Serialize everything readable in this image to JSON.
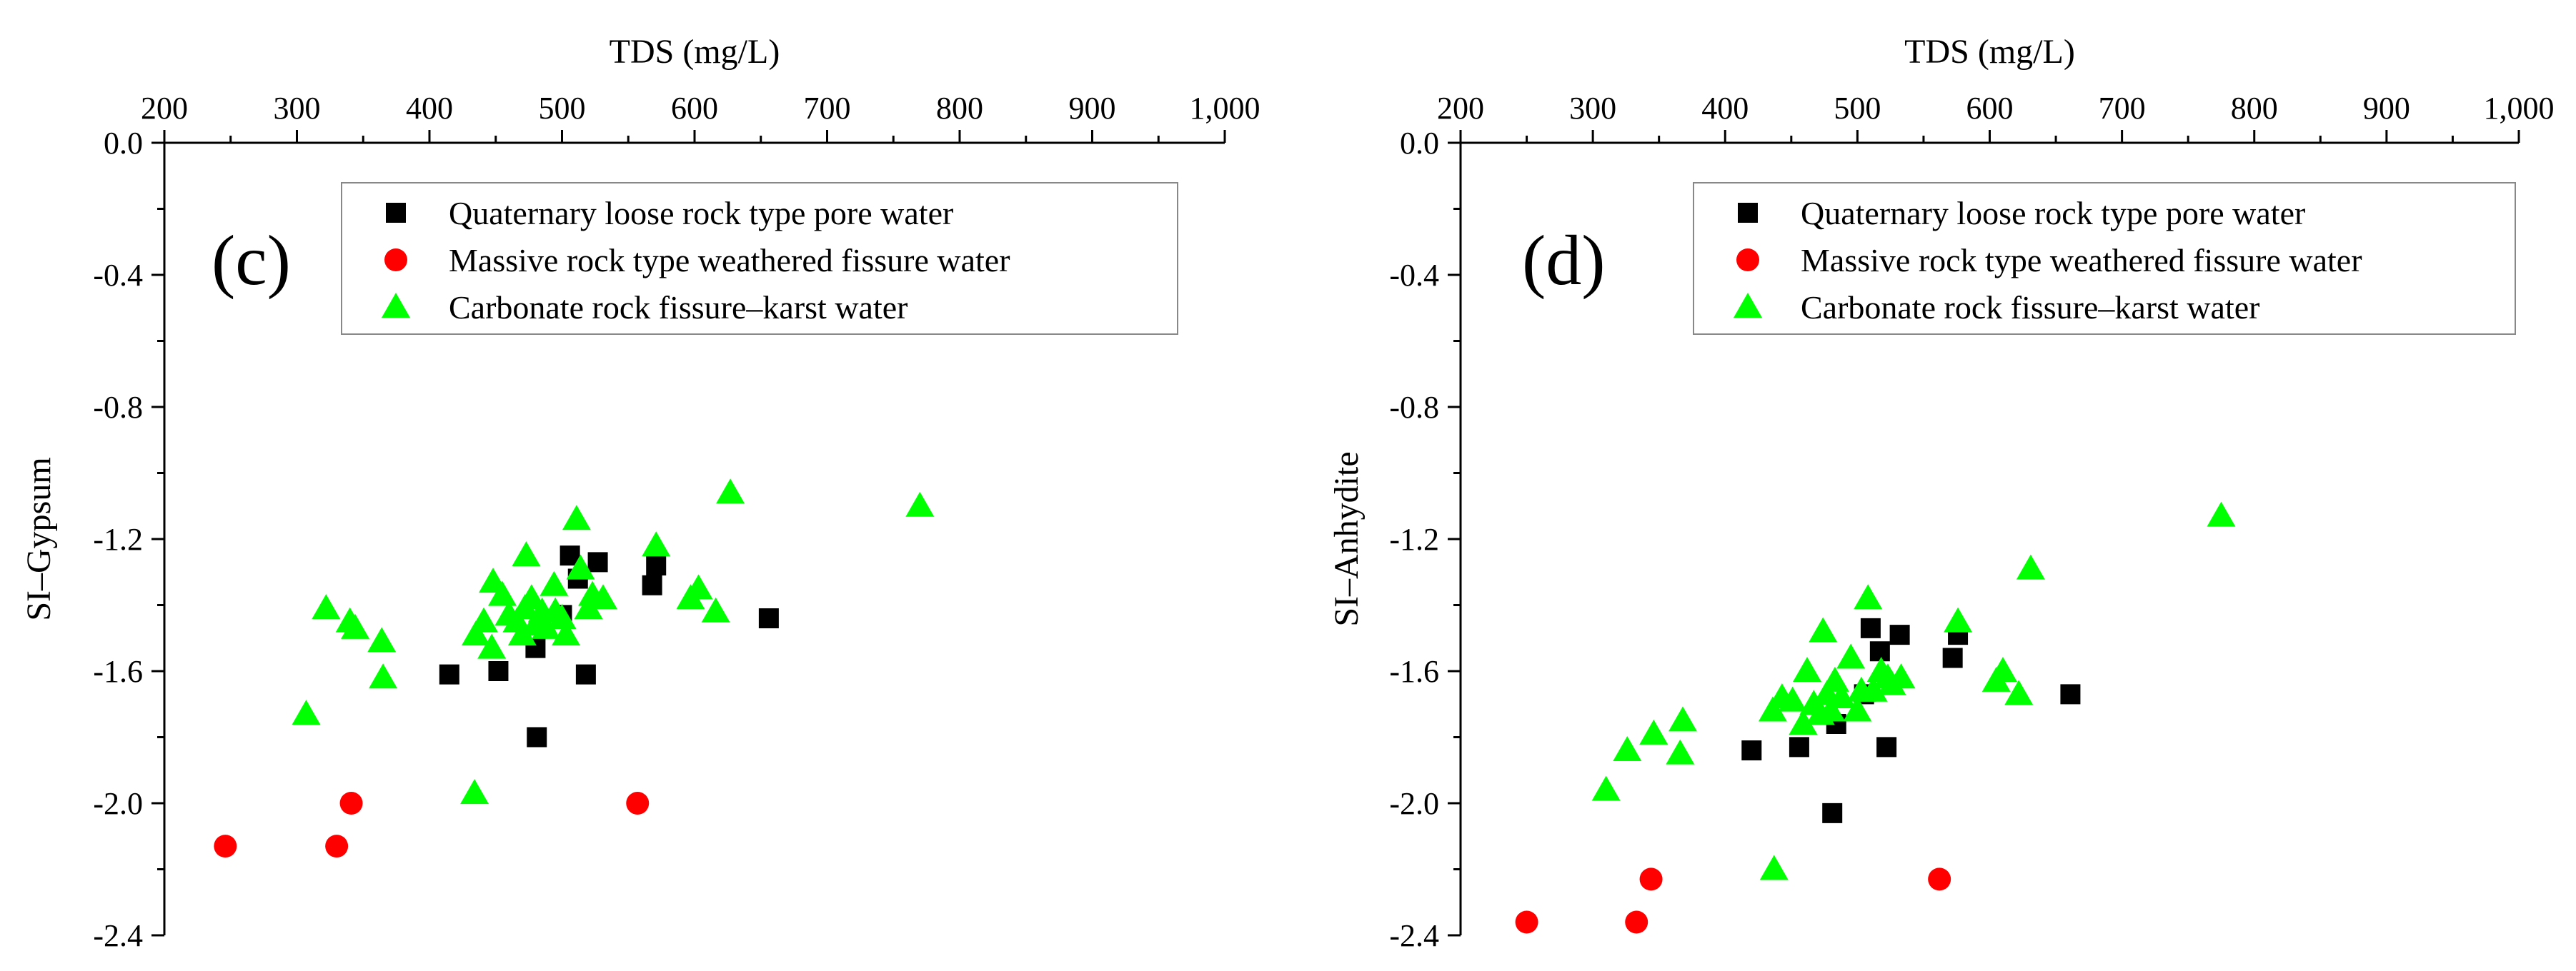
{
  "chart_data": [
    {
      "type": "scatter",
      "panel_label": "(c)",
      "xlabel": "TDS (mg/L)",
      "ylabel": "SI–Gypsum",
      "xlim": [
        200,
        1000
      ],
      "ylim": [
        -2.4,
        0.0
      ],
      "x_axis_position": "top",
      "y_axis_position": "left",
      "x_tick_labels": [
        "200",
        "300",
        "400",
        "500",
        "600",
        "700",
        "800",
        "900",
        "1,000"
      ],
      "y_tick_labels": [
        "0.0",
        "-0.4",
        "-0.8",
        "-1.2",
        "-1.6",
        "-2.0",
        "-2.4"
      ],
      "legend_position": "top",
      "series": [
        {
          "name": "Quaternary loose rock type pore water",
          "marker": "square",
          "color": "#000000",
          "points": [
            [
              415,
              -1.61
            ],
            [
              452,
              -1.6
            ],
            [
              480,
              -1.53
            ],
            [
              481,
              -1.8
            ],
            [
              500,
              -1.43
            ],
            [
              506,
              -1.25
            ],
            [
              512,
              -1.32
            ],
            [
              518,
              -1.61
            ],
            [
              527,
              -1.27
            ],
            [
              568,
              -1.34
            ],
            [
              571,
              -1.28
            ],
            [
              656,
              -1.44
            ]
          ]
        },
        {
          "name": "Massive rock type weathered fissure water",
          "marker": "circle",
          "color": "#ff0000",
          "points": [
            [
              246,
              -2.13
            ],
            [
              330,
              -2.13
            ],
            [
              341,
              -2.0
            ],
            [
              557,
              -2.0
            ]
          ]
        },
        {
          "name": "Carbonate rock fissure–karst water",
          "marker": "triangle",
          "color": "#00ff00",
          "points": [
            [
              307,
              -1.73
            ],
            [
              322,
              -1.41
            ],
            [
              340,
              -1.45
            ],
            [
              344,
              -1.47
            ],
            [
              364,
              -1.51
            ],
            [
              365,
              -1.62
            ],
            [
              434,
              -1.97
            ],
            [
              435,
              -1.49
            ],
            [
              441,
              -1.45
            ],
            [
              447,
              -1.53
            ],
            [
              448,
              -1.33
            ],
            [
              455,
              -1.37
            ],
            [
              460,
              -1.43
            ],
            [
              466,
              -1.45
            ],
            [
              470,
              -1.49
            ],
            [
              472,
              -1.41
            ],
            [
              473,
              -1.25
            ],
            [
              477,
              -1.38
            ],
            [
              480,
              -1.46
            ],
            [
              485,
              -1.42
            ],
            [
              488,
              -1.47
            ],
            [
              494,
              -1.34
            ],
            [
              495,
              -1.42
            ],
            [
              500,
              -1.44
            ],
            [
              503,
              -1.49
            ],
            [
              511,
              -1.14
            ],
            [
              514,
              -1.29
            ],
            [
              520,
              -1.41
            ],
            [
              523,
              -1.37
            ],
            [
              531,
              -1.38
            ],
            [
              571,
              -1.22
            ],
            [
              597,
              -1.38
            ],
            [
              603,
              -1.35
            ],
            [
              616,
              -1.42
            ],
            [
              627,
              -1.06
            ],
            [
              770,
              -1.1
            ]
          ]
        }
      ]
    },
    {
      "type": "scatter",
      "panel_label": "(d)",
      "xlabel": "TDS (mg/L)",
      "ylabel": "SI–Anhydite",
      "xlim": [
        200,
        1000
      ],
      "ylim": [
        -2.4,
        0.0
      ],
      "x_axis_position": "top",
      "y_axis_position": "left",
      "x_tick_labels": [
        "200",
        "300",
        "400",
        "500",
        "600",
        "700",
        "800",
        "900",
        "1,000"
      ],
      "y_tick_labels": [
        "0.0",
        "-0.4",
        "-0.8",
        "-1.2",
        "-1.6",
        "-2.0",
        "-2.4"
      ],
      "legend_position": "top",
      "series": [
        {
          "name": "Quaternary loose rock type pore water",
          "marker": "square",
          "color": "#000000",
          "points": [
            [
              420,
              -1.84
            ],
            [
              456,
              -1.83
            ],
            [
              481,
              -2.03
            ],
            [
              484,
              -1.76
            ],
            [
              505,
              -1.67
            ],
            [
              510,
              -1.47
            ],
            [
              517,
              -1.54
            ],
            [
              522,
              -1.83
            ],
            [
              532,
              -1.49
            ],
            [
              572,
              -1.56
            ],
            [
              576,
              -1.49
            ],
            [
              661,
              -1.67
            ]
          ]
        },
        {
          "name": "Massive rock type weathered fissure water",
          "marker": "circle",
          "color": "#ff0000",
          "points": [
            [
              250,
              -2.36
            ],
            [
              333,
              -2.36
            ],
            [
              344,
              -2.23
            ],
            [
              562,
              -2.23
            ]
          ]
        },
        {
          "name": "Carbonate rock fissure–karst water",
          "marker": "triangle",
          "color": "#00ff00",
          "points": [
            [
              310,
              -1.96
            ],
            [
              326,
              -1.84
            ],
            [
              346,
              -1.79
            ],
            [
              366,
              -1.85
            ],
            [
              368,
              -1.75
            ],
            [
              436,
              -1.72
            ],
            [
              437,
              -2.2
            ],
            [
              443,
              -1.68
            ],
            [
              451,
              -1.69
            ],
            [
              459,
              -1.76
            ],
            [
              462,
              -1.6
            ],
            [
              467,
              -1.7
            ],
            [
              472,
              -1.73
            ],
            [
              474,
              -1.48
            ],
            [
              477,
              -1.67
            ],
            [
              480,
              -1.72
            ],
            [
              483,
              -1.63
            ],
            [
              488,
              -1.68
            ],
            [
              495,
              -1.56
            ],
            [
              500,
              -1.72
            ],
            [
              503,
              -1.66
            ],
            [
              508,
              -1.38
            ],
            [
              512,
              -1.66
            ],
            [
              518,
              -1.6
            ],
            [
              523,
              -1.62
            ],
            [
              526,
              -1.64
            ],
            [
              533,
              -1.62
            ],
            [
              576,
              -1.45
            ],
            [
              605,
              -1.63
            ],
            [
              610,
              -1.6
            ],
            [
              622,
              -1.67
            ],
            [
              631,
              -1.29
            ],
            [
              775,
              -1.13
            ]
          ]
        }
      ]
    }
  ]
}
